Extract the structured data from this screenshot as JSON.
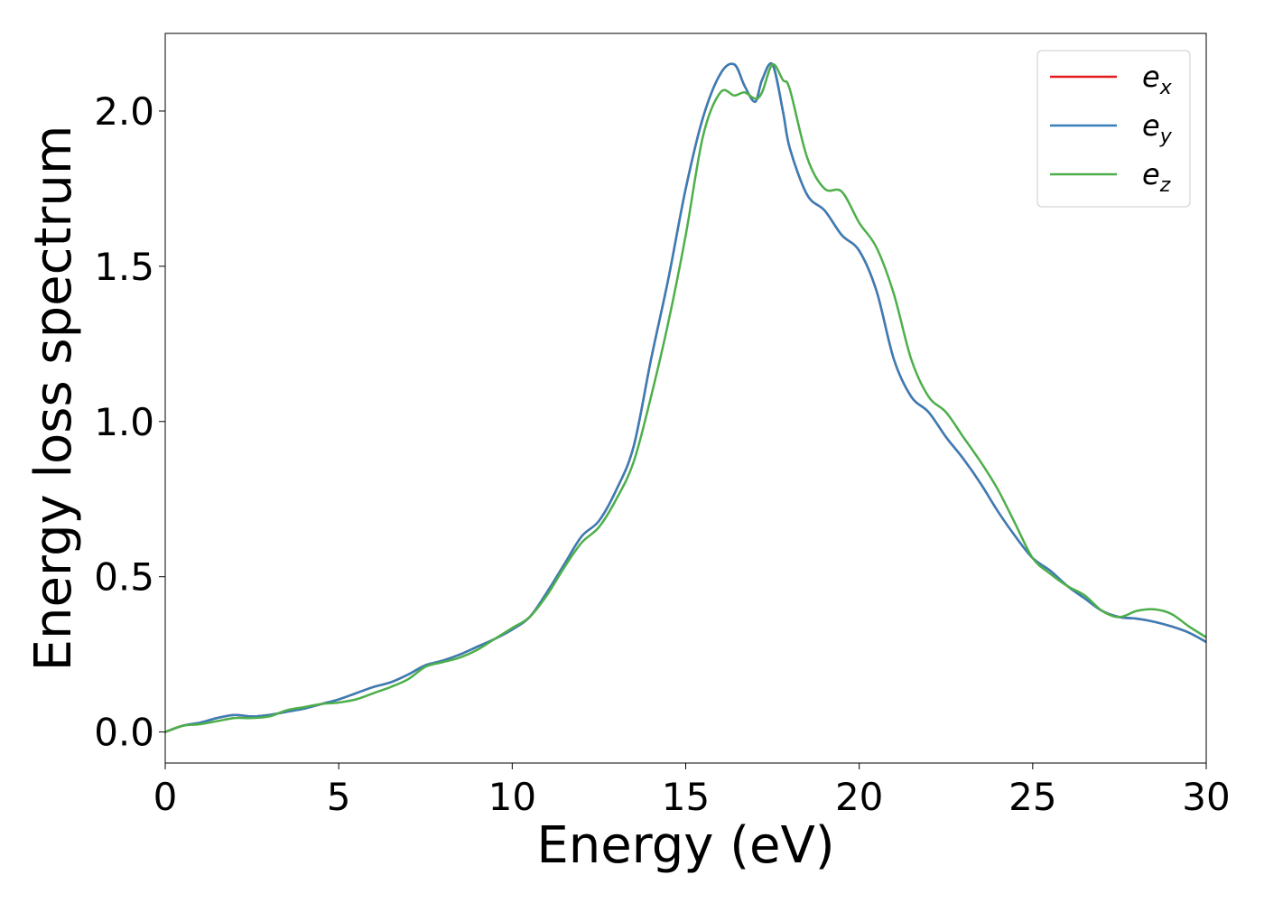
{
  "chart_data": {
    "type": "line",
    "title": "",
    "xlabel": "Energy (eV)",
    "ylabel": "Energy loss spectrum",
    "xlim": [
      0,
      30
    ],
    "ylim": [
      -0.1,
      2.25
    ],
    "xticks": [
      0,
      5,
      10,
      15,
      20,
      25,
      30
    ],
    "xtick_labels": [
      "0",
      "5",
      "10",
      "15",
      "20",
      "25",
      "30"
    ],
    "yticks": [
      0.0,
      0.5,
      1.0,
      1.5,
      2.0
    ],
    "ytick_labels": [
      "0.0",
      "0.5",
      "1.0",
      "1.5",
      "2.0"
    ],
    "grid": false,
    "legend_position": "top-right",
    "series": [
      {
        "name": "e_x",
        "label_base": "e",
        "label_sub": "x",
        "color": "#e41a1c",
        "x": [
          0,
          0.5,
          1,
          1.5,
          2,
          2.5,
          3,
          3.5,
          4,
          4.5,
          5,
          5.5,
          6,
          6.5,
          7,
          7.5,
          8,
          8.5,
          9,
          9.5,
          10,
          10.5,
          11,
          11.5,
          12,
          12.5,
          13,
          13.5,
          14,
          14.5,
          15,
          15.5,
          16,
          16.4,
          16.7,
          17,
          17.2,
          17.5,
          17.8,
          18,
          18.5,
          19,
          19.5,
          20,
          20.5,
          21,
          21.5,
          22,
          22.5,
          23,
          23.5,
          24,
          24.5,
          25,
          25.5,
          26,
          26.5,
          27,
          27.5,
          28,
          28.5,
          29,
          29.5,
          30
        ],
        "y": [
          0.0,
          0.02,
          0.03,
          0.045,
          0.055,
          0.05,
          0.055,
          0.065,
          0.075,
          0.09,
          0.105,
          0.125,
          0.145,
          0.16,
          0.185,
          0.215,
          0.23,
          0.25,
          0.275,
          0.3,
          0.33,
          0.37,
          0.45,
          0.54,
          0.63,
          0.68,
          0.78,
          0.92,
          1.2,
          1.46,
          1.75,
          1.98,
          2.12,
          2.15,
          2.08,
          2.03,
          2.1,
          2.15,
          2.0,
          1.88,
          1.73,
          1.68,
          1.6,
          1.55,
          1.42,
          1.2,
          1.08,
          1.03,
          0.95,
          0.88,
          0.8,
          0.71,
          0.63,
          0.56,
          0.52,
          0.47,
          0.43,
          0.39,
          0.37,
          0.365,
          0.355,
          0.34,
          0.32,
          0.29
        ]
      },
      {
        "name": "e_y",
        "label_base": "e",
        "label_sub": "y",
        "color": "#377eb8",
        "x": [
          0,
          0.5,
          1,
          1.5,
          2,
          2.5,
          3,
          3.5,
          4,
          4.5,
          5,
          5.5,
          6,
          6.5,
          7,
          7.5,
          8,
          8.5,
          9,
          9.5,
          10,
          10.5,
          11,
          11.5,
          12,
          12.5,
          13,
          13.5,
          14,
          14.5,
          15,
          15.5,
          16,
          16.4,
          16.7,
          17,
          17.2,
          17.5,
          17.8,
          18,
          18.5,
          19,
          19.5,
          20,
          20.5,
          21,
          21.5,
          22,
          22.5,
          23,
          23.5,
          24,
          24.5,
          25,
          25.5,
          26,
          26.5,
          27,
          27.5,
          28,
          28.5,
          29,
          29.5,
          30
        ],
        "y": [
          0.0,
          0.02,
          0.03,
          0.045,
          0.055,
          0.05,
          0.055,
          0.065,
          0.075,
          0.09,
          0.105,
          0.125,
          0.145,
          0.16,
          0.185,
          0.215,
          0.23,
          0.25,
          0.275,
          0.3,
          0.33,
          0.37,
          0.45,
          0.54,
          0.63,
          0.68,
          0.78,
          0.92,
          1.2,
          1.46,
          1.75,
          1.98,
          2.12,
          2.15,
          2.08,
          2.03,
          2.1,
          2.15,
          2.0,
          1.88,
          1.73,
          1.68,
          1.6,
          1.55,
          1.42,
          1.2,
          1.08,
          1.03,
          0.95,
          0.88,
          0.8,
          0.71,
          0.63,
          0.56,
          0.52,
          0.47,
          0.43,
          0.39,
          0.37,
          0.365,
          0.355,
          0.34,
          0.32,
          0.29
        ]
      },
      {
        "name": "e_z",
        "label_base": "e",
        "label_sub": "z",
        "color": "#4daf4a",
        "x": [
          0,
          0.5,
          1,
          1.5,
          2,
          2.5,
          3,
          3.5,
          4,
          4.5,
          5,
          5.5,
          6,
          6.5,
          7,
          7.5,
          8,
          8.5,
          9,
          9.5,
          10,
          10.5,
          11,
          11.5,
          12,
          12.5,
          13,
          13.5,
          14,
          14.5,
          15,
          15.5,
          16,
          16.4,
          16.7,
          17,
          17.2,
          17.5,
          17.8,
          18,
          18.5,
          19,
          19.5,
          20,
          20.5,
          21,
          21.5,
          22,
          22.5,
          23,
          23.5,
          24,
          24.5,
          25,
          25.5,
          26,
          26.5,
          27,
          27.5,
          28,
          28.5,
          29,
          29.5,
          30
        ],
        "y": [
          0.0,
          0.02,
          0.025,
          0.035,
          0.045,
          0.045,
          0.05,
          0.07,
          0.08,
          0.09,
          0.095,
          0.105,
          0.125,
          0.145,
          0.17,
          0.21,
          0.225,
          0.24,
          0.265,
          0.3,
          0.335,
          0.37,
          0.44,
          0.53,
          0.61,
          0.66,
          0.75,
          0.87,
          1.08,
          1.32,
          1.6,
          1.92,
          2.06,
          2.05,
          2.06,
          2.04,
          2.06,
          2.15,
          2.1,
          2.07,
          1.85,
          1.75,
          1.74,
          1.64,
          1.56,
          1.41,
          1.2,
          1.08,
          1.03,
          0.95,
          0.87,
          0.78,
          0.67,
          0.56,
          0.51,
          0.47,
          0.44,
          0.39,
          0.37,
          0.39,
          0.395,
          0.38,
          0.34,
          0.305
        ]
      }
    ]
  }
}
